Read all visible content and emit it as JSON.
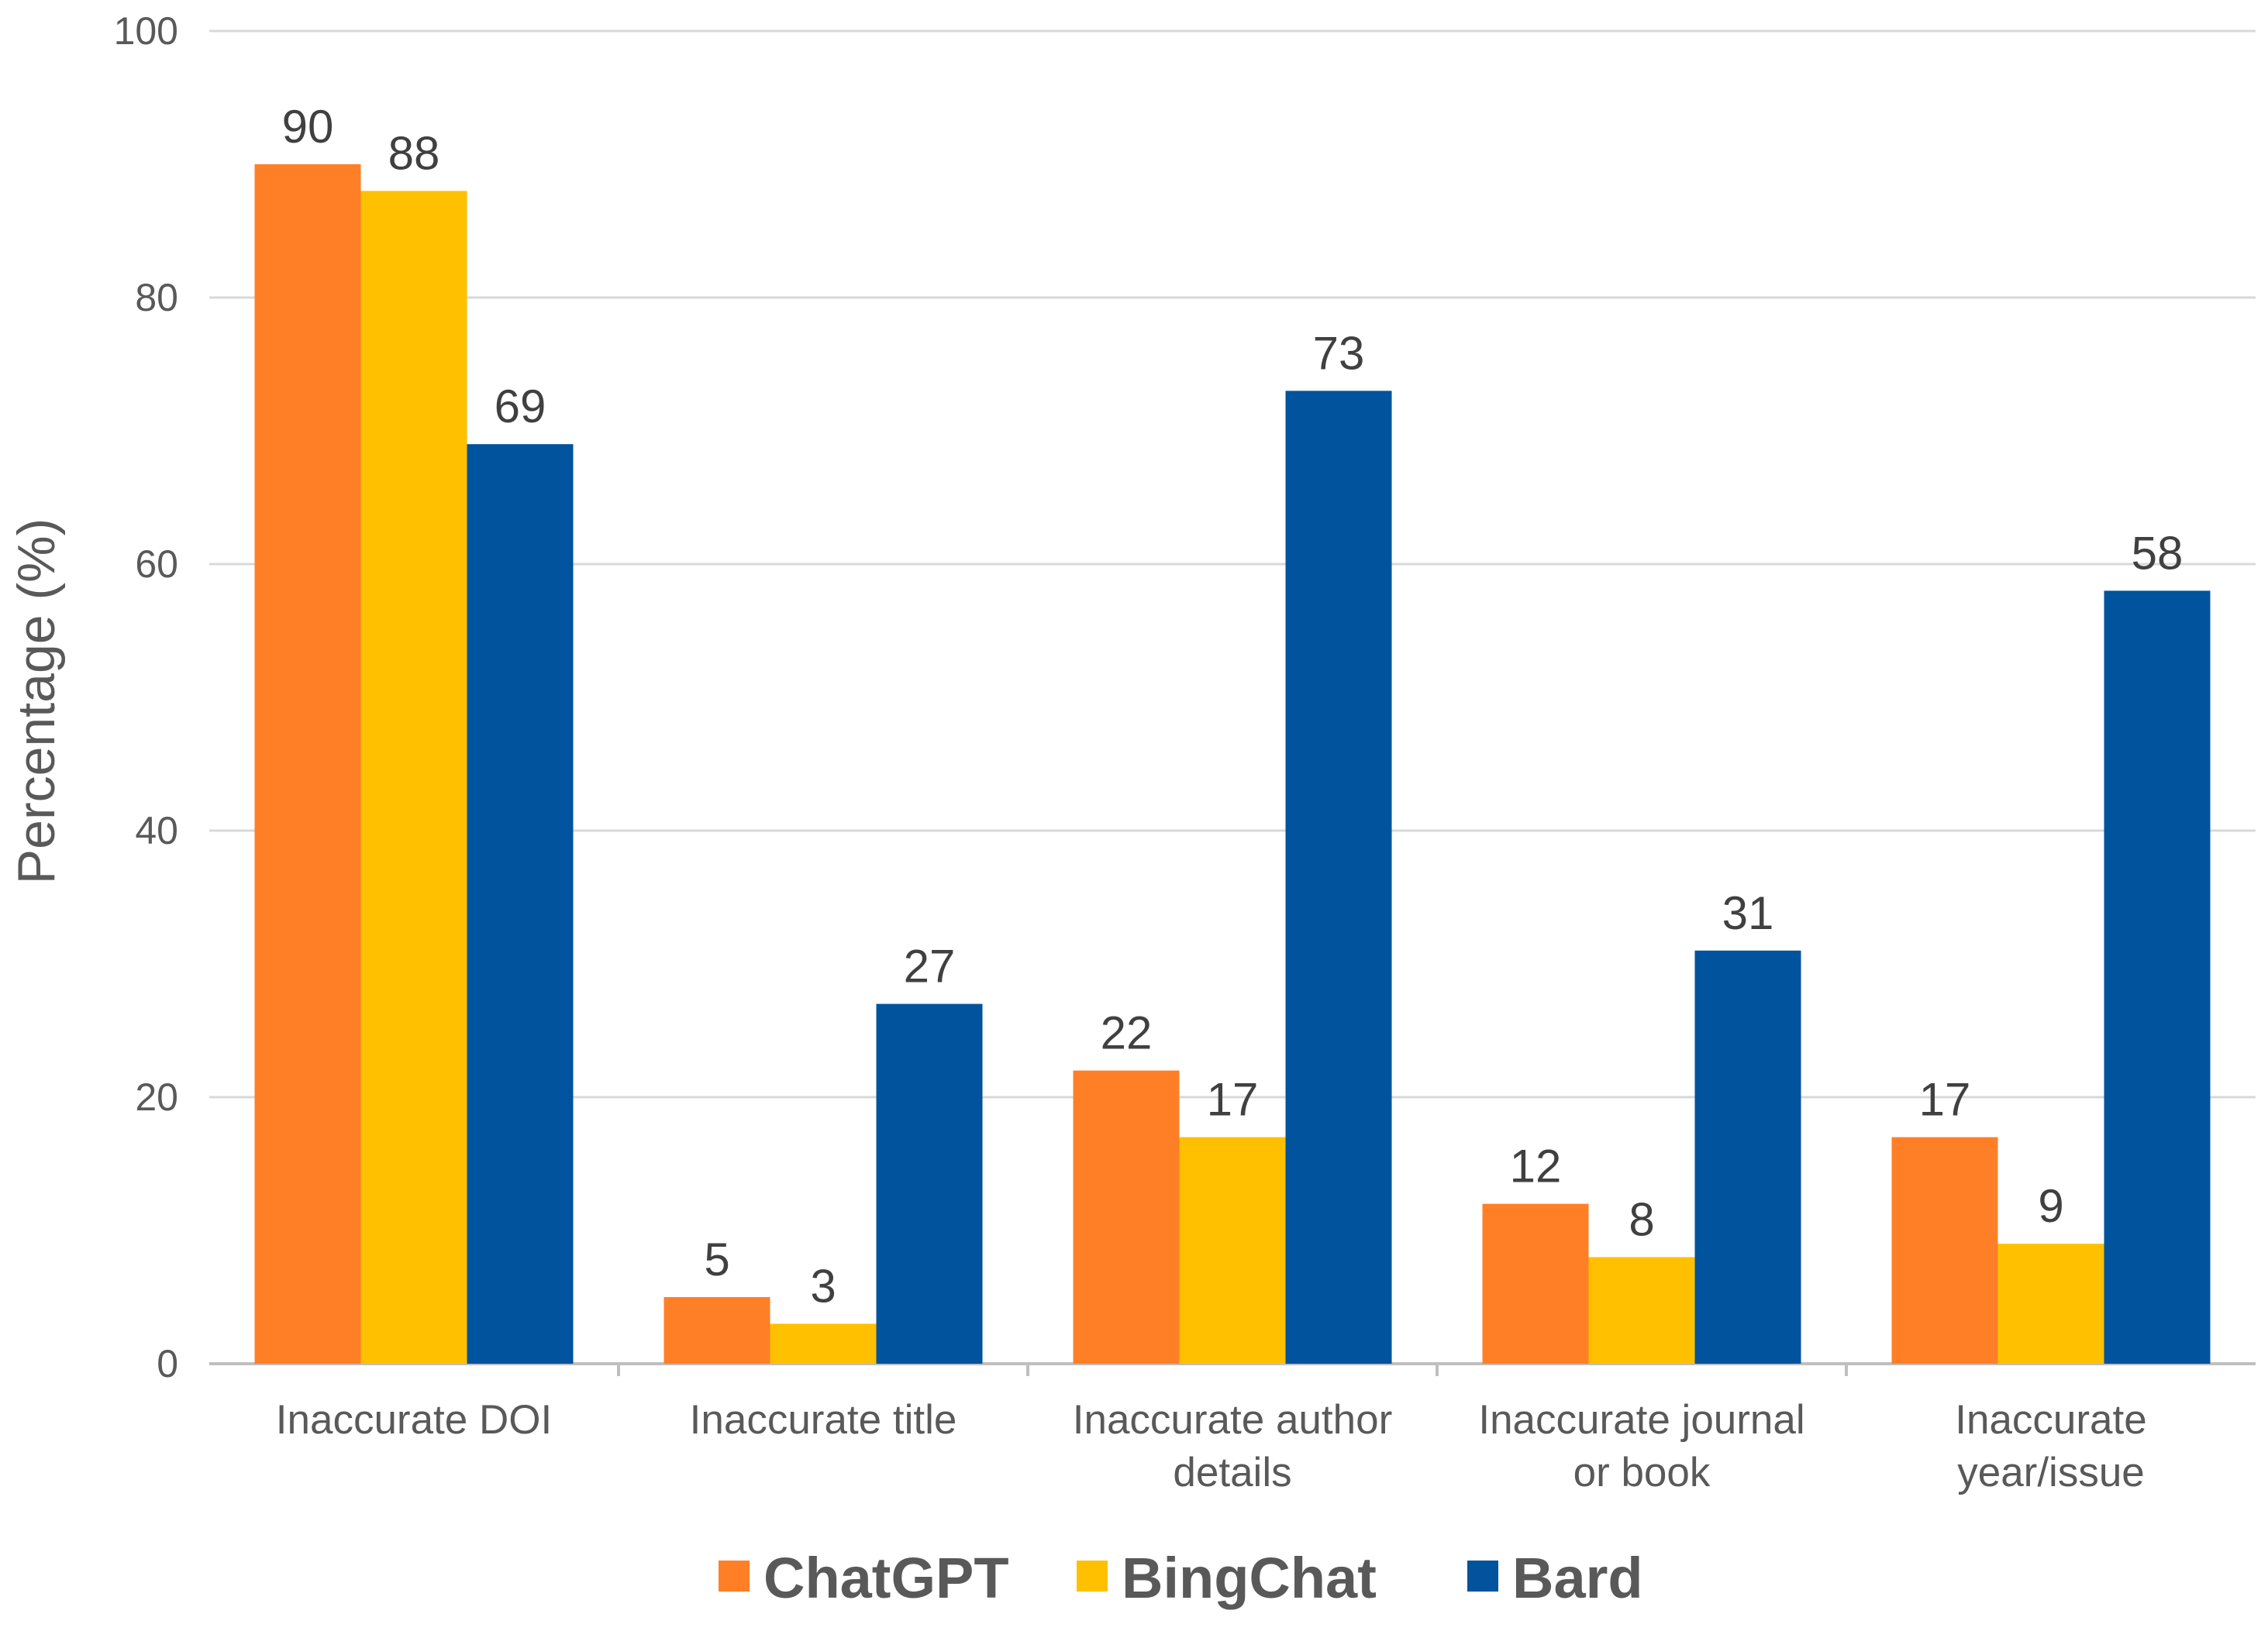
{
  "chart_data": {
    "type": "bar",
    "title": "",
    "xlabel": "",
    "ylabel": "Percentage (%)",
    "ylim": [
      0,
      100
    ],
    "yticks": [
      "0",
      "20",
      "40",
      "60",
      "80",
      "100"
    ],
    "grid": true,
    "legend_position": "bottom",
    "categories": [
      [
        "Inaccurate DOI"
      ],
      [
        "Inaccurate title"
      ],
      [
        "Inaccurate author",
        "details"
      ],
      [
        "Inaccurate journal",
        "or book"
      ],
      [
        "Inaccurate",
        "year/issue"
      ]
    ],
    "series": [
      {
        "name": "ChatGPT",
        "color": "#FF7F27",
        "values": [
          90,
          5,
          22,
          12,
          17
        ]
      },
      {
        "name": "BingChat",
        "color": "#FFC000",
        "values": [
          88,
          3,
          17,
          8,
          9
        ]
      },
      {
        "name": "Bard",
        "color": "#00539C",
        "values": [
          69,
          27,
          73,
          31,
          58
        ]
      }
    ]
  }
}
